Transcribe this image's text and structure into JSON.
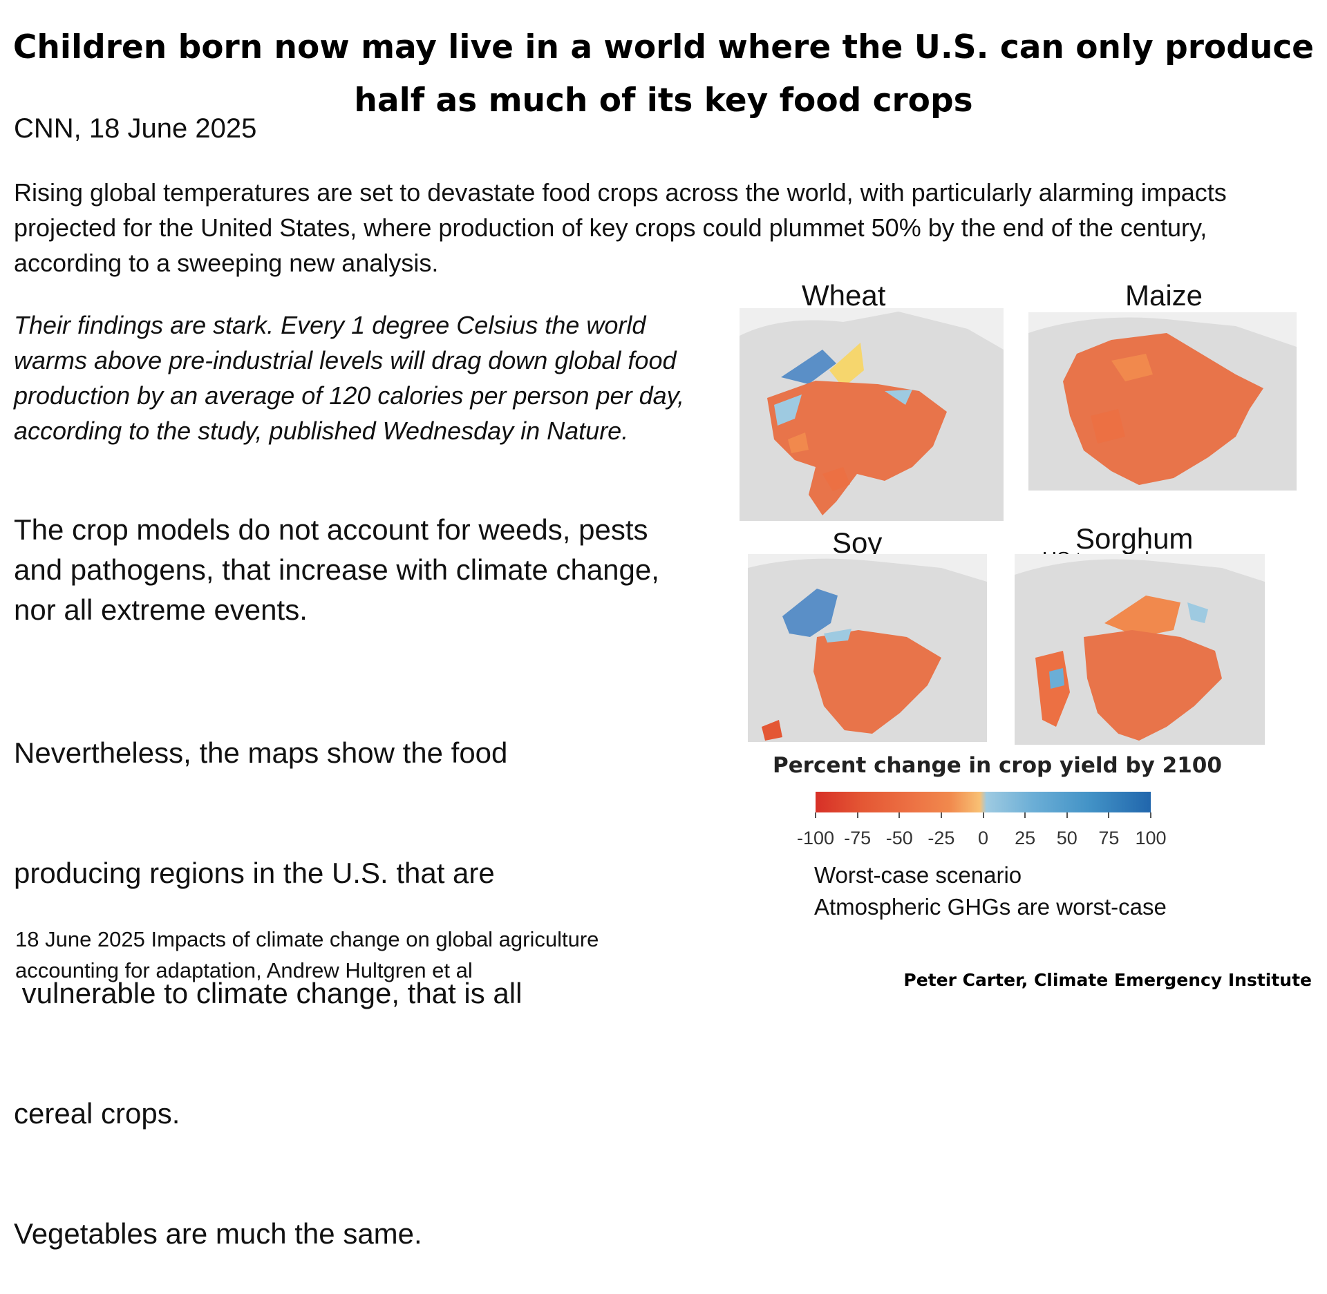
{
  "headline": {
    "line1": "Children born now may live in a world where the U.S. can only produce",
    "line2": "half as much of its key food crops"
  },
  "source": "CNN, 18 June 2025",
  "intro": "Rising global temperatures are set to devastate food crops across the world, with particularly alarming impacts projected for the United States, where production of key crops could plummet 50% by the end of the century, according to a sweeping new analysis.",
  "quote": "Their findings are stark. Every 1 degree Celsius the world warms above pre-industrial levels will drag down global food production by an average of 120 calories per person per day, according to the study, published Wednesday in Nature.",
  "models_note": "The crop models do not account for weeds, pests and pathogens, that increase with climate change, nor all extreme events.",
  "nevertheless": {
    "line1": "Nevertheless, the maps show the food",
    "line2": "producing regions in the U.S. that are",
    "line3": " vulnerable to climate change, that is all",
    "line4": "cereal crops.",
    "line5": "Vegetables are much the same."
  },
  "maps": {
    "wheat": {
      "label": "Wheat"
    },
    "maize": {
      "label": "Maize"
    },
    "soy": {
      "label": "Soy"
    },
    "sorghum": {
      "label": "Sorghum",
      "note": "US top producer"
    }
  },
  "scale": {
    "title": "Percent change in crop yield by 2100",
    "ticks": [
      "-100",
      "-75",
      "-50",
      "-25",
      "0",
      "25",
      "50",
      "75",
      "100"
    ],
    "min": -100,
    "max": 100,
    "colors": {
      "negative": "#d73027",
      "neutral": "#f8c074",
      "positive": "#2166ac"
    }
  },
  "scenario": {
    "line1": "Worst-case scenario",
    "line2": "Atmospheric GHGs are worst-case"
  },
  "reference": {
    "line1": "18 June 2025 Impacts of climate change on global agriculture",
    "line2": "accounting for adaptation, Andrew Hultgren et al"
  },
  "credit": "Peter Carter,  Climate Emergency Institute"
}
